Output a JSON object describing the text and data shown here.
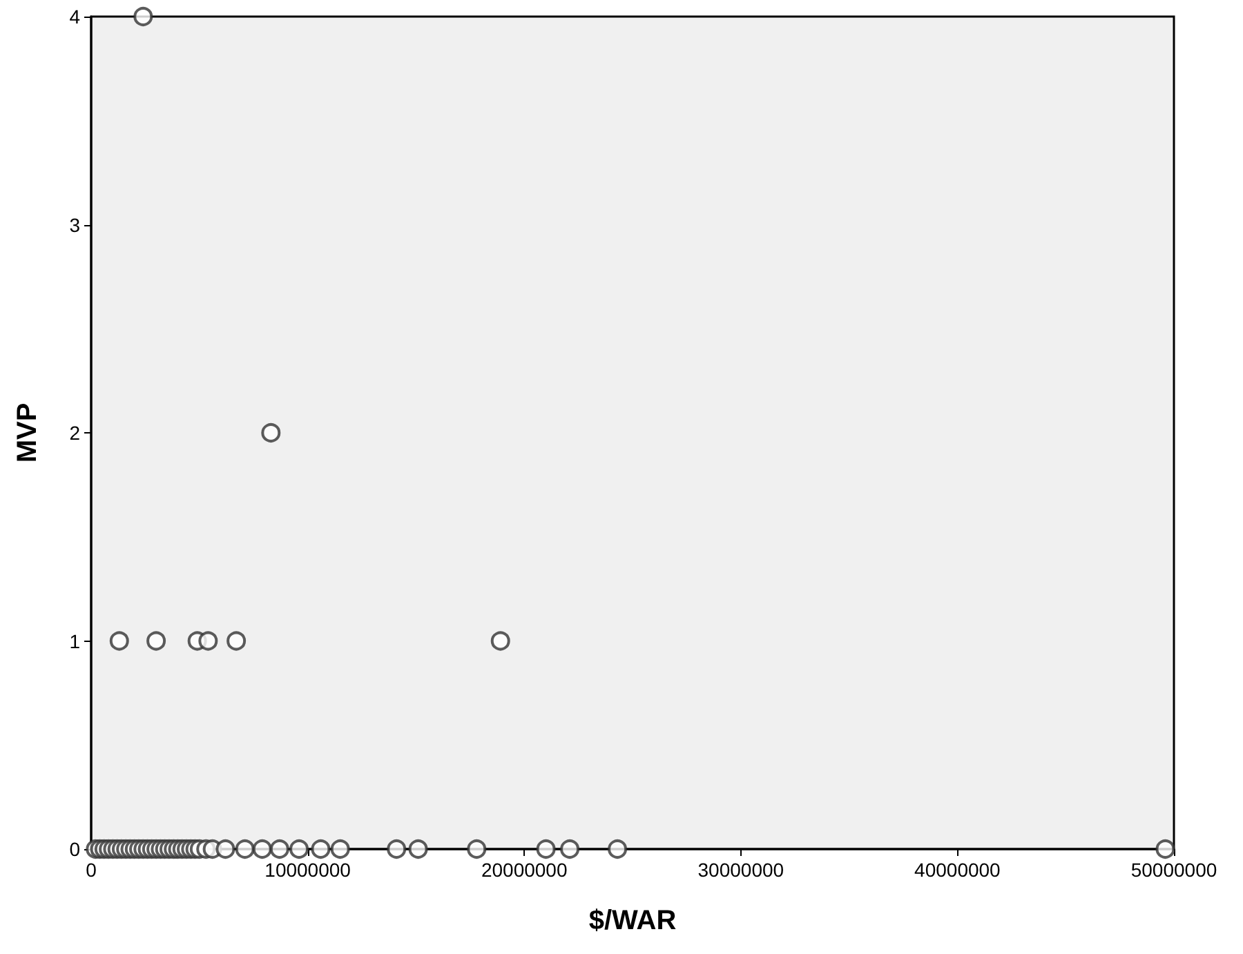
{
  "chart_data": {
    "type": "scatter",
    "xlabel": "$/WAR",
    "ylabel": "MVP",
    "x": [
      2400000,
      8300000,
      1300000,
      3000000,
      4900000,
      5400000,
      6700000,
      18900000,
      200000,
      400000,
      600000,
      800000,
      1000000,
      1200000,
      1400000,
      1600000,
      1800000,
      2000000,
      2200000,
      2400000,
      2600000,
      2800000,
      3000000,
      3200000,
      3400000,
      3600000,
      3800000,
      4000000,
      4200000,
      4400000,
      4600000,
      4800000,
      5000000,
      5300000,
      5600000,
      6200000,
      7100000,
      7900000,
      8700000,
      9600000,
      10600000,
      11500000,
      14100000,
      15100000,
      17800000,
      21000000,
      22100000,
      24300000,
      49600000
    ],
    "values": [
      4,
      2,
      1,
      1,
      1,
      1,
      1,
      1,
      0,
      0,
      0,
      0,
      0,
      0,
      0,
      0,
      0,
      0,
      0,
      0,
      0,
      0,
      0,
      0,
      0,
      0,
      0,
      0,
      0,
      0,
      0,
      0,
      0,
      0,
      0,
      0,
      0,
      0,
      0,
      0,
      0,
      0,
      0,
      0,
      0,
      0,
      0,
      0,
      0
    ],
    "color": "#333333",
    "marker": "circle",
    "grid": false,
    "xlim": [
      0,
      50000000
    ],
    "xticks": [
      0,
      10000000,
      20000000,
      30000000,
      40000000,
      50000000
    ],
    "ylim": [
      0,
      4
    ],
    "yticks": [
      0,
      1,
      2,
      3,
      4
    ]
  }
}
